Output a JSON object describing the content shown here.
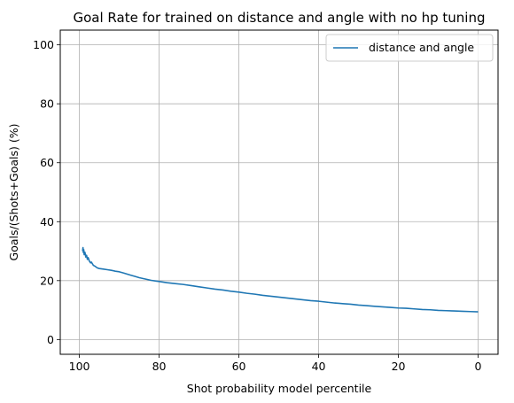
{
  "chart_data": {
    "type": "line",
    "title": "Goal Rate for trained on distance and angle with no hp tuning",
    "xlabel": "Shot probability model percentile",
    "ylabel": "Goals/(Shots+Goals) (%)",
    "xlim": [
      104.8,
      -5.0
    ],
    "ylim": [
      -5,
      105
    ],
    "x_inverted": true,
    "xticks": [
      100,
      80,
      60,
      40,
      20,
      0
    ],
    "yticks": [
      0,
      20,
      40,
      60,
      80,
      100
    ],
    "grid": true,
    "legend_position": "top-right",
    "series": [
      {
        "name": "distance and angle",
        "color": "#1f77b4",
        "x": [
          99.2,
          99.1,
          99.0,
          98.9,
          98.8,
          98.6,
          98.4,
          98.2,
          98.0,
          97.8,
          97.5,
          97.2,
          97.0,
          96.5,
          96.0,
          95.5,
          95.0,
          94.0,
          93.0,
          92.0,
          91.0,
          90.0,
          89.0,
          88.0,
          87.0,
          86.0,
          85.0,
          84.0,
          83.0,
          82.0,
          81.0,
          80.0,
          78.0,
          76.0,
          74.0,
          72.0,
          70.0,
          68.0,
          66.0,
          64.0,
          62.0,
          60.0,
          58.0,
          56.0,
          54.0,
          52.0,
          50.0,
          48.0,
          46.0,
          44.0,
          42.0,
          40.0,
          38.0,
          36.0,
          34.0,
          32.0,
          30.0,
          28.0,
          26.0,
          24.0,
          22.0,
          20.0,
          18.0,
          16.0,
          14.0,
          12.0,
          10.0,
          8.0,
          6.0,
          4.0,
          2.0,
          0.0
        ],
        "y": [
          30.0,
          31.2,
          29.5,
          30.5,
          28.8,
          29.6,
          28.0,
          28.6,
          27.2,
          27.8,
          26.6,
          26.0,
          26.3,
          25.2,
          24.8,
          24.3,
          24.1,
          23.9,
          23.7,
          23.5,
          23.2,
          23.0,
          22.6,
          22.2,
          21.8,
          21.4,
          21.0,
          20.7,
          20.4,
          20.1,
          19.9,
          19.7,
          19.3,
          19.0,
          18.7,
          18.3,
          17.9,
          17.5,
          17.1,
          16.8,
          16.4,
          16.1,
          15.7,
          15.4,
          15.0,
          14.7,
          14.4,
          14.1,
          13.8,
          13.5,
          13.2,
          13.0,
          12.7,
          12.4,
          12.2,
          12.0,
          11.7,
          11.5,
          11.3,
          11.1,
          10.9,
          10.7,
          10.6,
          10.4,
          10.2,
          10.1,
          9.9,
          9.8,
          9.7,
          9.6,
          9.5,
          9.4
        ]
      }
    ]
  }
}
